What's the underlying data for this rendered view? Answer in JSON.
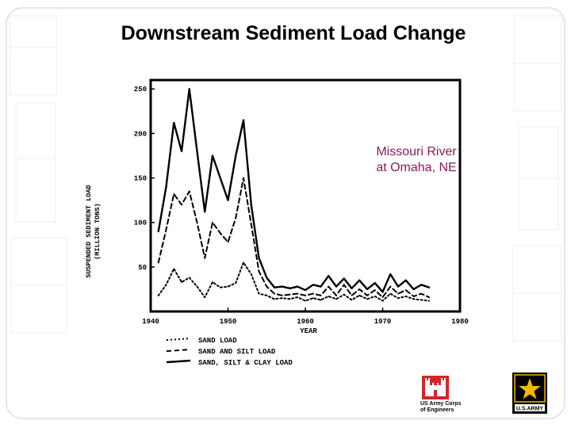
{
  "title": "Downstream Sediment Load Change",
  "annotation": {
    "line1": "Missouri River",
    "line2": "at Omaha, NE"
  },
  "logos": {
    "corps_line1": "US Army Corps",
    "corps_line2": "of Engineers",
    "army_text": "U.S.ARMY"
  },
  "colors": {
    "annotation": "#8a1c5a",
    "corps_red": "#d0262c",
    "army_gold": "#f2b800"
  },
  "chart_data": {
    "type": "line",
    "title": "",
    "xlabel": "YEAR",
    "ylabel_line1": "SUSPENDED SEDIMENT LOAD",
    "ylabel_line2": "(MILLION TONS)",
    "xlim": [
      1940,
      1980
    ],
    "ylim": [
      0,
      260
    ],
    "xticks": [
      1940,
      1950,
      1960,
      1970,
      1980
    ],
    "yticks": [
      50,
      100,
      150,
      200,
      250
    ],
    "x": [
      1941,
      1942,
      1943,
      1944,
      1945,
      1946,
      1947,
      1948,
      1949,
      1950,
      1951,
      1952,
      1953,
      1954,
      1955,
      1956,
      1957,
      1958,
      1959,
      1960,
      1961,
      1962,
      1963,
      1964,
      1965,
      1966,
      1967,
      1968,
      1969,
      1970,
      1971,
      1972,
      1973,
      1974,
      1975,
      1976
    ],
    "series": [
      {
        "name": "SAND LOAD",
        "style": "dotted",
        "values": [
          18,
          30,
          48,
          33,
          38,
          28,
          16,
          33,
          27,
          28,
          32,
          55,
          42,
          20,
          18,
          14,
          15,
          14,
          16,
          12,
          15,
          13,
          17,
          14,
          19,
          13,
          18,
          14,
          17,
          12,
          20,
          15,
          17,
          14,
          13,
          12
        ]
      },
      {
        "name": "SAND AND SILT LOAD",
        "style": "dashed",
        "values": [
          55,
          92,
          132,
          120,
          135,
          100,
          60,
          100,
          88,
          78,
          105,
          150,
          98,
          45,
          28,
          20,
          18,
          19,
          20,
          18,
          20,
          18,
          28,
          18,
          30,
          18,
          25,
          18,
          24,
          16,
          28,
          20,
          24,
          17,
          20,
          16
        ]
      },
      {
        "name": "SAND, SILT & CLAY LOAD",
        "style": "solid",
        "values": [
          90,
          140,
          212,
          180,
          250,
          180,
          112,
          175,
          150,
          125,
          175,
          215,
          120,
          60,
          38,
          27,
          28,
          26,
          28,
          24,
          30,
          28,
          40,
          28,
          37,
          26,
          35,
          25,
          32,
          22,
          42,
          28,
          35,
          25,
          30,
          27
        ]
      }
    ],
    "legend_position": "bottom-left",
    "grid": false
  }
}
